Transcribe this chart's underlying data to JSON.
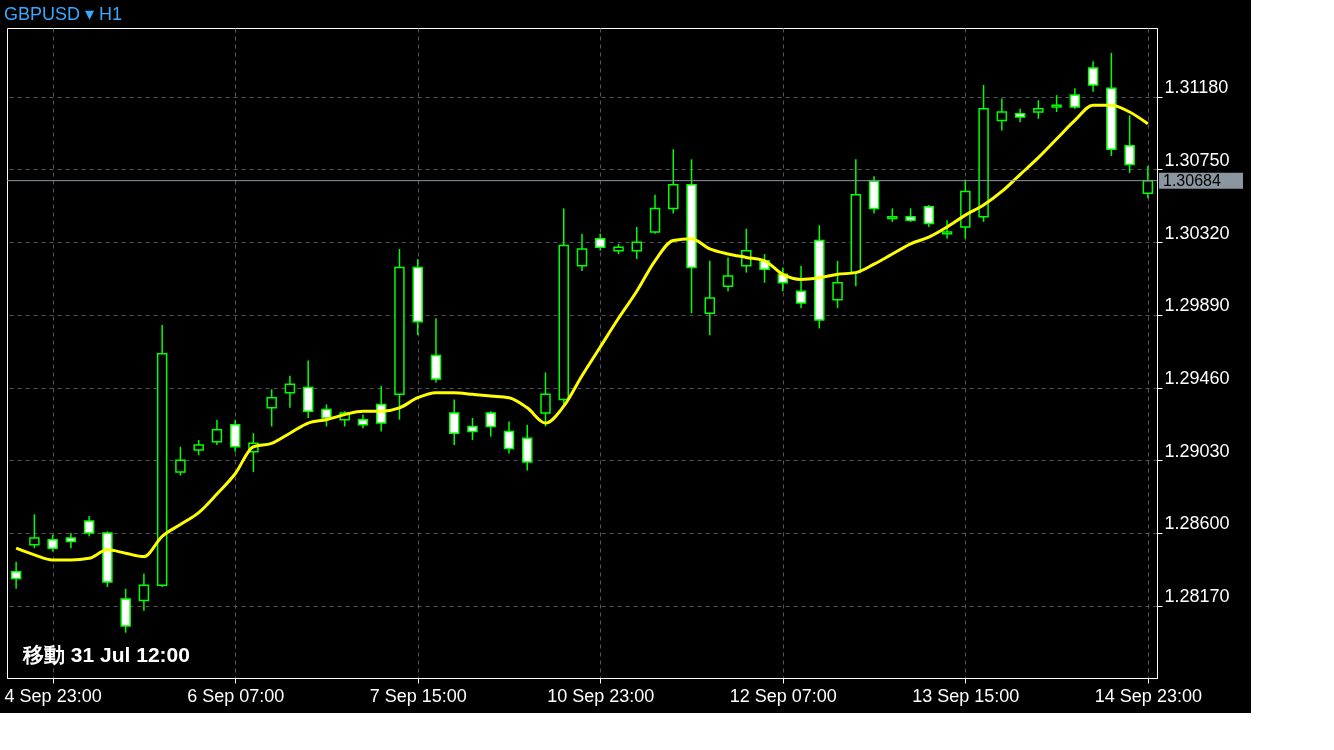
{
  "chart_data": {
    "type": "candlestick",
    "title": "GBPUSD ▾ H1",
    "categories": [
      null,
      null,
      "4 Sep 23:00",
      null,
      null,
      null,
      null,
      null,
      null,
      null,
      null,
      null,
      "6 Sep 07:00",
      null,
      null,
      null,
      null,
      null,
      null,
      null,
      null,
      null,
      "7 Sep 15:00",
      null,
      null,
      null,
      null,
      null,
      null,
      null,
      null,
      null,
      "10 Sep 23:00",
      null,
      null,
      null,
      null,
      null,
      null,
      null,
      null,
      null,
      "12 Sep 07:00",
      null,
      null,
      null,
      null,
      null,
      null,
      null,
      null,
      null,
      "13 Sep 15:00",
      null,
      null,
      null,
      null,
      null,
      null,
      null,
      null,
      null,
      "14 Sep 23:00"
    ],
    "ohlc": [
      [
        1.2837,
        1.2843,
        1.2827,
        1.2833
      ],
      [
        1.2853,
        1.2871,
        1.2851,
        1.2857
      ],
      [
        1.2856,
        1.2859,
        1.2849,
        1.2851
      ],
      [
        1.2857,
        1.286,
        1.2851,
        1.2855
      ],
      [
        1.2867,
        1.287,
        1.2858,
        1.286
      ],
      [
        1.286,
        1.2861,
        1.2828,
        1.2831
      ],
      [
        1.2821,
        1.2827,
        1.2801,
        1.2805
      ],
      [
        1.282,
        1.2836,
        1.2814,
        1.2829
      ],
      [
        1.2829,
        1.2983,
        1.2828,
        1.2966
      ],
      [
        1.2896,
        1.2911,
        1.2894,
        1.2903
      ],
      [
        1.2909,
        1.2915,
        1.2906,
        1.2912
      ],
      [
        1.2914,
        1.2927,
        1.2912,
        1.2921
      ],
      [
        1.2924,
        1.2927,
        1.2908,
        1.2911
      ],
      [
        1.2908,
        1.2919,
        1.2896,
        1.2913
      ],
      [
        1.2934,
        1.2945,
        1.2923,
        1.294
      ],
      [
        1.2943,
        1.2953,
        1.2934,
        1.2948
      ],
      [
        1.2946,
        1.2962,
        1.2928,
        1.2932
      ],
      [
        1.2933,
        1.2936,
        1.2923,
        1.2928
      ],
      [
        1.2927,
        1.2932,
        1.2923,
        1.2931
      ],
      [
        1.2927,
        1.293,
        1.2922,
        1.2924
      ],
      [
        1.2936,
        1.2947,
        1.292,
        1.2925
      ],
      [
        1.2942,
        1.3028,
        1.2927,
        1.3017
      ],
      [
        1.3017,
        1.3022,
        1.2977,
        1.2985
      ],
      [
        1.2965,
        1.2987,
        1.2949,
        1.2951
      ],
      [
        1.2931,
        1.2939,
        1.2912,
        1.2919
      ],
      [
        1.2923,
        1.2928,
        1.2915,
        1.292
      ],
      [
        1.2931,
        1.2932,
        1.2917,
        1.2923
      ],
      [
        1.292,
        1.2926,
        1.2907,
        1.291
      ],
      [
        1.2916,
        1.2924,
        1.2897,
        1.2902
      ],
      [
        1.2931,
        1.2955,
        1.2923,
        1.2942
      ],
      [
        1.2939,
        1.3052,
        1.2936,
        1.303
      ],
      [
        1.3018,
        1.3037,
        1.3015,
        1.3028
      ],
      [
        1.3034,
        1.3037,
        1.3027,
        1.3029
      ],
      [
        1.3027,
        1.3031,
        1.3025,
        1.3029
      ],
      [
        1.3027,
        1.3041,
        1.3022,
        1.3032
      ],
      [
        1.3038,
        1.306,
        1.3037,
        1.3052
      ],
      [
        1.3052,
        1.3087,
        1.3049,
        1.3066
      ],
      [
        1.3066,
        1.3081,
        1.299,
        1.3017
      ],
      [
        1.299,
        1.3021,
        1.2977,
        1.2999
      ],
      [
        1.3006,
        1.3023,
        1.3003,
        1.3012
      ],
      [
        1.3018,
        1.304,
        1.3014,
        1.3027
      ],
      [
        1.3021,
        1.3025,
        1.3008,
        1.3016
      ],
      [
        1.3013,
        1.3017,
        1.3003,
        1.3008
      ],
      [
        1.3003,
        1.3018,
        1.2993,
        1.2996
      ],
      [
        1.3033,
        1.3042,
        1.2981,
        1.2986
      ],
      [
        1.2998,
        1.3021,
        1.2993,
        1.3008
      ],
      [
        1.3014,
        1.3081,
        1.3006,
        1.306
      ],
      [
        1.3068,
        1.3071,
        1.3049,
        1.3052
      ],
      [
        1.3046,
        1.3052,
        1.3044,
        1.3047
      ],
      [
        1.3047,
        1.3052,
        1.3044,
        1.3045
      ],
      [
        1.3053,
        1.3054,
        1.3041,
        1.3043
      ],
      [
        1.3037,
        1.3045,
        1.3034,
        1.3038
      ],
      [
        1.3041,
        1.3069,
        1.3034,
        1.3062
      ],
      [
        1.3047,
        1.3125,
        1.3044,
        1.3111
      ],
      [
        1.3104,
        1.3117,
        1.3098,
        1.3109
      ],
      [
        1.3108,
        1.3111,
        1.3103,
        1.3106
      ],
      [
        1.3109,
        1.3116,
        1.3105,
        1.3111
      ],
      [
        1.3112,
        1.3119,
        1.3109,
        1.3113
      ],
      [
        1.3119,
        1.3123,
        1.3111,
        1.3112
      ],
      [
        1.3135,
        1.3139,
        1.3121,
        1.3125
      ],
      [
        1.3123,
        1.3144,
        1.3083,
        1.3087
      ],
      [
        1.3089,
        1.3107,
        1.3073,
        1.3078
      ],
      [
        1.3061,
        1.3077,
        1.3058,
        1.30684
      ]
    ],
    "series": [
      {
        "type": "line",
        "color": "#ffff00",
        "values": [
          1.2851,
          1.2847,
          1.2844,
          1.2844,
          1.2845,
          1.285,
          1.2848,
          1.2846,
          1.2858,
          1.2865,
          1.2872,
          1.2883,
          1.2895,
          1.2911,
          1.2913,
          1.2919,
          1.2925,
          1.2927,
          1.293,
          1.2932,
          1.2932,
          1.2934,
          1.294,
          1.2943,
          1.2943,
          1.2942,
          1.2941,
          1.294,
          1.2934,
          1.2925,
          1.2935,
          1.2953,
          1.297,
          1.2987,
          1.3003,
          1.3021,
          1.3033,
          1.3034,
          1.3028,
          1.3025,
          1.3023,
          1.3021,
          1.3013,
          1.301,
          1.3011,
          1.3013,
          1.3014,
          1.3019,
          1.3025,
          1.3031,
          1.3035,
          1.3041,
          1.3048,
          1.3054,
          1.3062,
          1.3072,
          1.3082,
          1.3093,
          1.3104,
          1.3113,
          1.3113,
          1.3109,
          1.3102
        ]
      }
    ],
    "ylim": [
      1.27742,
      1.31587
    ],
    "yticks": [
      {
        "value": 1.2817,
        "label": "1.28170"
      },
      {
        "value": 1.286,
        "label": "1.28600"
      },
      {
        "value": 1.2903,
        "label": "1.29030"
      },
      {
        "value": 1.2946,
        "label": "1.29460"
      },
      {
        "value": 1.2989,
        "label": "1.29890"
      },
      {
        "value": 1.3032,
        "label": "1.30320"
      },
      {
        "value": 1.3075,
        "label": "1.30750"
      },
      {
        "value": 1.3118,
        "label": "1.31180"
      }
    ],
    "grid": true,
    "ref_lines": [
      {
        "axis": "y",
        "value": 1.30684,
        "label": "1.30684",
        "color": "#8c96a0"
      }
    ],
    "annotations": [
      "移動 31 Jul 12:00"
    ]
  }
}
